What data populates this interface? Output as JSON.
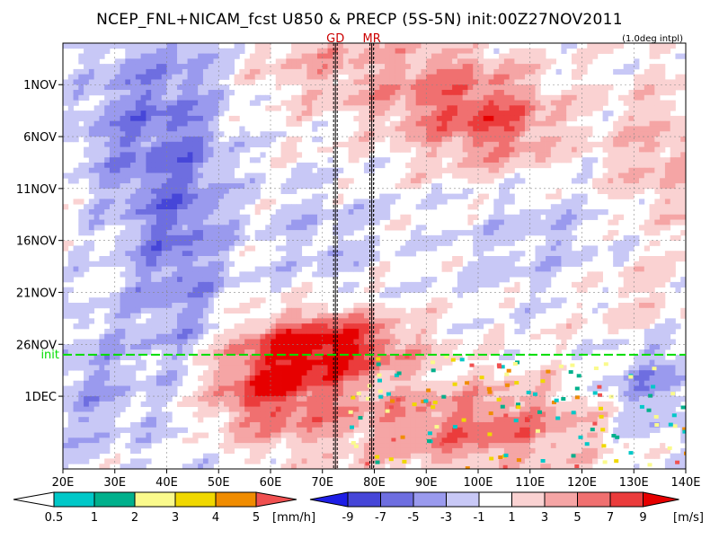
{
  "chart_data": {
    "type": "heatmap",
    "title": "NCEP_FNL+NICAM_fcst U850 & PRECP (5S-5N) init:00Z27NOV2011",
    "note": "(1.0deg intpl)",
    "x_ticks": [
      "20E",
      "30E",
      "40E",
      "50E",
      "60E",
      "70E",
      "80E",
      "90E",
      "100E",
      "110E",
      "120E",
      "130E",
      "140E"
    ],
    "x_range": [
      20,
      140
    ],
    "y_ticks": [
      {
        "label": "1NOV",
        "day": 1
      },
      {
        "label": "6NOV",
        "day": 6
      },
      {
        "label": "11NOV",
        "day": 11
      },
      {
        "label": "16NOV",
        "day": 16
      },
      {
        "label": "21NOV",
        "day": 21
      },
      {
        "label": "26NOV",
        "day": 26
      },
      {
        "label": "1DEC",
        "day": 31
      }
    ],
    "y_range_days": [
      -3,
      38
    ],
    "init_line": {
      "label": "init",
      "day": 27,
      "color": "#00dd00"
    },
    "markers": [
      {
        "label": "GD",
        "lon": 72.5,
        "color": "#cc0000"
      },
      {
        "label": "MR",
        "lon": 79.5,
        "color": "#cc0000"
      }
    ],
    "precip_legend": {
      "labels": [
        "0.5",
        "1",
        "2",
        "3",
        "4",
        "5"
      ],
      "unit": "[mm/h]",
      "colors": [
        "#00c8c8",
        "#00b08c",
        "#fafa8c",
        "#f0d800",
        "#f08c00",
        "#f05050"
      ]
    },
    "wind_legend": {
      "labels": [
        "-9",
        "-7",
        "-5",
        "-3",
        "-1",
        "1",
        "3",
        "5",
        "7",
        "9"
      ],
      "unit": "[m/s]",
      "colors": [
        "#1e1ee6",
        "#4646d8",
        "#6e6ee0",
        "#9a9aee",
        "#c8c8f6",
        "#ffffff",
        "#fad2d2",
        "#f5a5a5",
        "#f07070",
        "#eb3c3c",
        "#e60000"
      ]
    },
    "wind_field_note": "U850 anomalies: blue easterly band near 35-50E, red westerly burst 55-85E around 24NOV-1DEC, red region 85-110E early NOV"
  }
}
